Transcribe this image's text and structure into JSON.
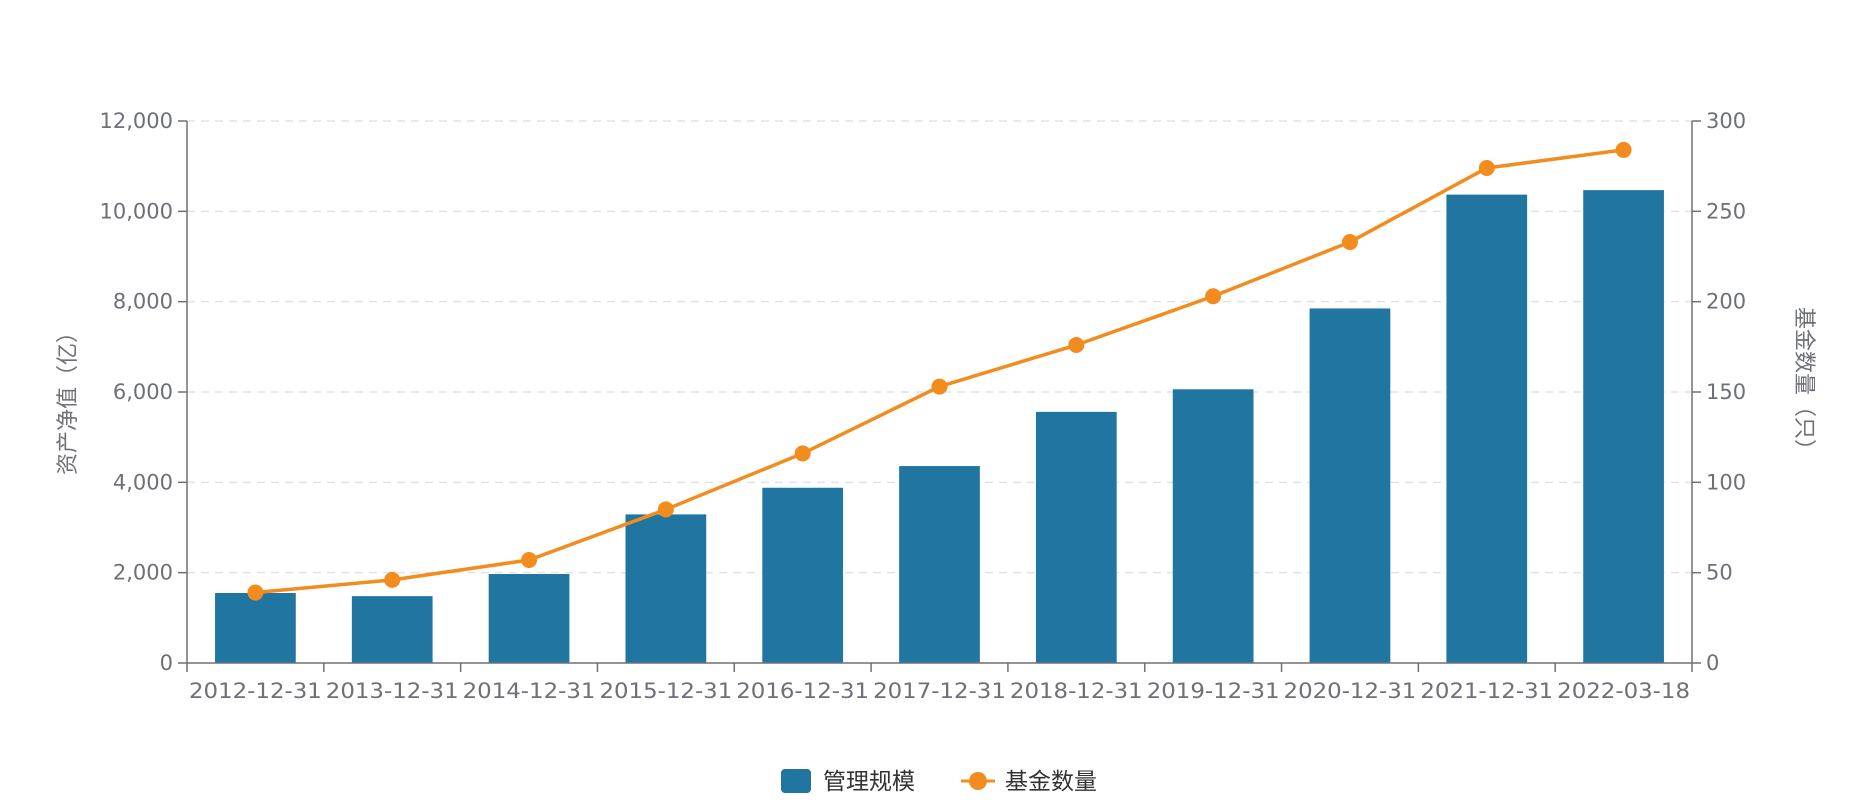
{
  "chart_data": {
    "type": "bar",
    "categories": [
      "2012-12-31",
      "2013-12-31",
      "2014-12-31",
      "2015-12-31",
      "2016-12-31",
      "2017-12-31",
      "2018-12-31",
      "2019-12-31",
      "2020-12-31",
      "2021-12-31",
      "2022-03-18"
    ],
    "series": [
      {
        "name": "管理规模",
        "type": "bar",
        "axis": "left",
        "color": "#2176a1",
        "values": [
          1550,
          1480,
          1970,
          3290,
          3880,
          4360,
          5560,
          6060,
          7850,
          10370,
          10470
        ]
      },
      {
        "name": "基金数量",
        "type": "line",
        "axis": "right",
        "color": "#f28c1e",
        "values": [
          39,
          46,
          57,
          85,
          116,
          153,
          176,
          203,
          233,
          274,
          284
        ]
      }
    ],
    "y_left": {
      "label": "资产净值（亿）",
      "ylim": [
        0,
        12000
      ],
      "ticks": [
        "0",
        "2,000",
        "4,000",
        "6,000",
        "8,000",
        "10,000",
        "12,000"
      ]
    },
    "y_right": {
      "label": "基金数量（只）",
      "ylim": [
        0,
        300
      ],
      "ticks": [
        "0",
        "50",
        "100",
        "150",
        "200",
        "250",
        "300"
      ]
    },
    "grid": true,
    "legend_position": "bottom"
  }
}
